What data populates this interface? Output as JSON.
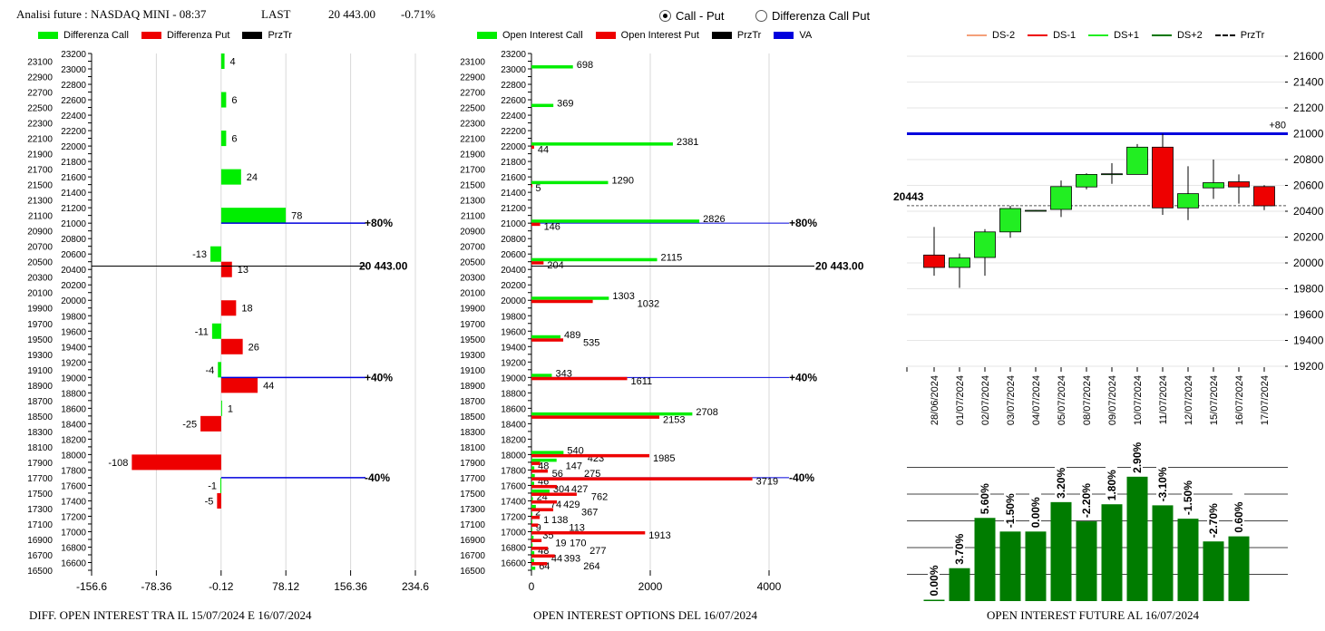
{
  "header": {
    "title": "Analisi future : NASDAQ MINI - 08:37",
    "last_label": "LAST",
    "last_value": "20 443.00",
    "change": "-0.71%"
  },
  "radios": [
    {
      "label": "Call - Put",
      "selected": true
    },
    {
      "label": "Differenza Call Put",
      "selected": false
    }
  ],
  "colors": {
    "call": "#00ee00",
    "put": "#ee0000",
    "przTr": "#000000",
    "va": "#0000dd",
    "ds_minus2": "#f4a07a",
    "ds_minus1": "#ee0000",
    "ds_plus1": "#22ee22",
    "ds_plus2": "#007700",
    "oi_bar": "#007c00"
  },
  "chart_data": [
    {
      "type": "bar",
      "orientation": "horizontal",
      "title": "DIFF. OPEN INTEREST TRA IL 15/07/2024 E 16/07/2024",
      "legend": [
        "Differenza Call",
        "Differenza Put",
        "PrzTr"
      ],
      "legend_placement": "top",
      "ylim": [
        16500,
        23200
      ],
      "xlim": [
        -156.6,
        234.6
      ],
      "xticks": [
        "-156.6",
        "-78.36",
        "-0.12",
        "78.12",
        "156.36",
        "234.6"
      ],
      "grid": true,
      "series": [
        {
          "name": "Differenza Call",
          "points": [
            [
              23000,
              4
            ],
            [
              22500,
              6
            ],
            [
              22000,
              6
            ],
            [
              21500,
              24
            ],
            [
              21000,
              78
            ],
            [
              20500,
              -13
            ],
            [
              19500,
              -11
            ],
            [
              19000,
              -4
            ],
            [
              18500,
              1
            ],
            [
              17500,
              -1
            ]
          ]
        },
        {
          "name": "Differenza Put",
          "points": [
            [
              20500,
              13
            ],
            [
              20000,
              18
            ],
            [
              19500,
              26
            ],
            [
              19000,
              44
            ],
            [
              18500,
              -25
            ],
            [
              18000,
              -108
            ],
            [
              17500,
              -5
            ]
          ]
        }
      ],
      "lines": [
        {
          "level": 21000,
          "label": "+80%",
          "color": "va"
        },
        {
          "level": 19000,
          "label": "+40%",
          "color": "va"
        },
        {
          "level": 17700,
          "label": "-40%",
          "color": "va"
        },
        {
          "level": 20443,
          "label": "20 443.00",
          "color": "przTr"
        }
      ]
    },
    {
      "type": "bar",
      "orientation": "horizontal",
      "title": "OPEN INTEREST OPTIONS DEL 16/07/2024",
      "legend": [
        "Open Interest Call",
        "Open Interest Put",
        "PrzTr",
        "VA"
      ],
      "legend_placement": "top",
      "ylim": [
        16500,
        23200
      ],
      "xlim": [
        0,
        4300
      ],
      "xticks": [
        "0",
        "2000",
        "4000"
      ],
      "grid": true,
      "series": [
        {
          "name": "Open Interest Call",
          "points": [
            [
              23000,
              698
            ],
            [
              22500,
              369
            ],
            [
              22000,
              2381
            ],
            [
              21500,
              1290
            ],
            [
              21000,
              2826
            ],
            [
              20500,
              2115
            ],
            [
              20000,
              1303
            ],
            [
              19500,
              489
            ],
            [
              19000,
              343
            ],
            [
              18500,
              2708
            ],
            [
              18000,
              540
            ],
            [
              17900,
              423
            ],
            [
              17800,
              48
            ],
            [
              17700,
              56
            ],
            [
              17600,
              46
            ],
            [
              17500,
              304
            ],
            [
              17400,
              24
            ],
            [
              17300,
              74
            ],
            [
              17200,
              2
            ],
            [
              17100,
              1
            ],
            [
              17000,
              9
            ],
            [
              16900,
              35
            ],
            [
              16800,
              19
            ],
            [
              16700,
              48
            ],
            [
              16600,
              44
            ],
            [
              16500,
              64
            ]
          ]
        },
        {
          "name": "Open Interest Put",
          "points": [
            [
              22000,
              44
            ],
            [
              21500,
              5
            ],
            [
              21000,
              146
            ],
            [
              20500,
              204
            ],
            [
              20000,
              1032
            ],
            [
              19500,
              535
            ],
            [
              19000,
              1611
            ],
            [
              18500,
              2153
            ],
            [
              18000,
              1985
            ],
            [
              17900,
              147
            ],
            [
              17800,
              275
            ],
            [
              17700,
              3719
            ],
            [
              17600,
              427
            ],
            [
              17500,
              762
            ],
            [
              17400,
              429
            ],
            [
              17300,
              367
            ],
            [
              17200,
              138
            ],
            [
              17100,
              113
            ],
            [
              17000,
              1913
            ],
            [
              16900,
              170
            ],
            [
              16800,
              277
            ],
            [
              16700,
              393
            ],
            [
              16600,
              264
            ]
          ]
        }
      ],
      "lines": [
        {
          "level": 21000,
          "label": "+80%",
          "color": "va"
        },
        {
          "level": 19000,
          "label": "+40%",
          "color": "va"
        },
        {
          "level": 17700,
          "label": "-40%",
          "color": "va"
        },
        {
          "level": 20443,
          "label": "20 443.00",
          "color": "przTr"
        }
      ]
    },
    {
      "type": "candlestick",
      "legend": [
        "DS-2",
        "DS-1",
        "DS+1",
        "DS+2",
        "PrzTr"
      ],
      "legend_placement": "top",
      "ylim": [
        19200,
        21600
      ],
      "yticks": [
        "21600",
        "21400",
        "21200",
        "21000",
        "20800",
        "20600",
        "20400",
        "20200",
        "20000",
        "19800",
        "19600",
        "19400",
        "19200"
      ],
      "grid": true,
      "categories": [
        "28/06/2024",
        "01/07/2024",
        "02/07/2024",
        "03/07/2024",
        "04/07/2024",
        "05/07/2024",
        "08/07/2024",
        "09/07/2024",
        "10/07/2024",
        "11/07/2024",
        "12/07/2024",
        "15/07/2024",
        "16/07/2024",
        "17/07/2024"
      ],
      "ohlc": [
        [
          20061,
          20278,
          19901,
          19965
        ],
        [
          19965,
          20073,
          19807,
          20038
        ],
        [
          20042,
          20261,
          19901,
          20240
        ],
        [
          20240,
          20442,
          20195,
          20421
        ],
        [
          20407,
          20410,
          20405,
          20407
        ],
        [
          20414,
          20638,
          20355,
          20591
        ],
        [
          20588,
          20694,
          20569,
          20685
        ],
        [
          20687,
          20772,
          20612,
          20690
        ],
        [
          20685,
          20920,
          20685,
          20896
        ],
        [
          20896,
          21000,
          20372,
          20426
        ],
        [
          20426,
          20748,
          20332,
          20536
        ],
        [
          20581,
          20800,
          20496,
          20621
        ],
        [
          20628,
          20685,
          20459,
          20588
        ],
        [
          20591,
          20602,
          20409,
          20442
        ]
      ],
      "lines": [
        {
          "level": 21000,
          "label": "+80",
          "color": "va"
        },
        {
          "level": 20443,
          "label": "20443",
          "color": "przTr",
          "dashed": true
        }
      ]
    },
    {
      "type": "bar",
      "title": "OPEN INTEREST FUTURE AL 16/07/2024",
      "grid": true,
      "levels_in_grid_units": [
        0.03,
        1.23,
        3.11,
        2.6,
        2.6,
        3.7,
        2.98,
        3.62,
        4.65,
        3.58,
        3.08,
        2.23,
        2.42
      ],
      "labels": [
        "0.00%",
        "3.70%",
        "5.60%",
        "-1.50%",
        "0.00%",
        "3.20%",
        "-2.20%",
        "1.80%",
        "2.90%",
        "-3.10%",
        "-1.50%",
        "-2.70%",
        "0.60%"
      ]
    }
  ]
}
